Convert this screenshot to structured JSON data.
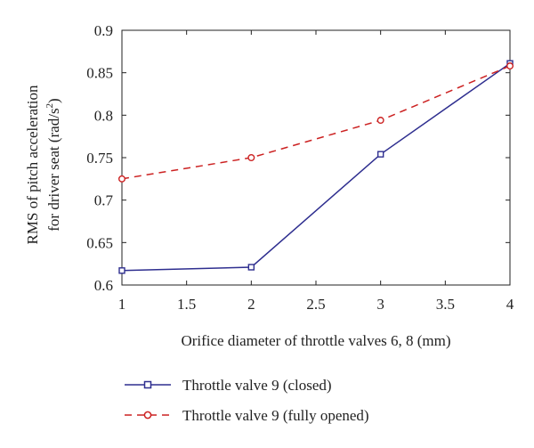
{
  "chart_data": {
    "type": "line",
    "xlabel": "Orifice diameter of throttle valves 6, 8 (mm)",
    "ylabel_line1": "RMS of pitch acceleration",
    "ylabel_line2_prefix": "for driver seat (rad/s",
    "ylabel_line2_sup": "2",
    "ylabel_line2_suffix": ")",
    "xlim": [
      1,
      4
    ],
    "ylim": [
      0.6,
      0.9
    ],
    "x_ticks": [
      1,
      1.5,
      2,
      2.5,
      3,
      3.5,
      4
    ],
    "x_tick_labels": [
      "1",
      "1.5",
      "2",
      "2.5",
      "3",
      "3.5",
      "4"
    ],
    "y_ticks": [
      0.6,
      0.65,
      0.7,
      0.75,
      0.8,
      0.85,
      0.9
    ],
    "y_tick_labels": [
      "0.6",
      "0.65",
      "0.7",
      "0.75",
      "0.8",
      "0.85",
      "0.9"
    ],
    "grid": false,
    "legend_position": "below",
    "series": [
      {
        "name": "Throttle valve 9 (closed)",
        "color": "#2e2e8f",
        "line_style": "solid",
        "marker": "square",
        "x": [
          1,
          2,
          3,
          4
        ],
        "y": [
          0.617,
          0.621,
          0.754,
          0.861
        ]
      },
      {
        "name": "Throttle valve 9 (fully opened)",
        "color": "#cc2222",
        "line_style": "dashed",
        "marker": "circle",
        "x": [
          1,
          2,
          3,
          4
        ],
        "y": [
          0.725,
          0.75,
          0.794,
          0.858
        ]
      }
    ]
  }
}
